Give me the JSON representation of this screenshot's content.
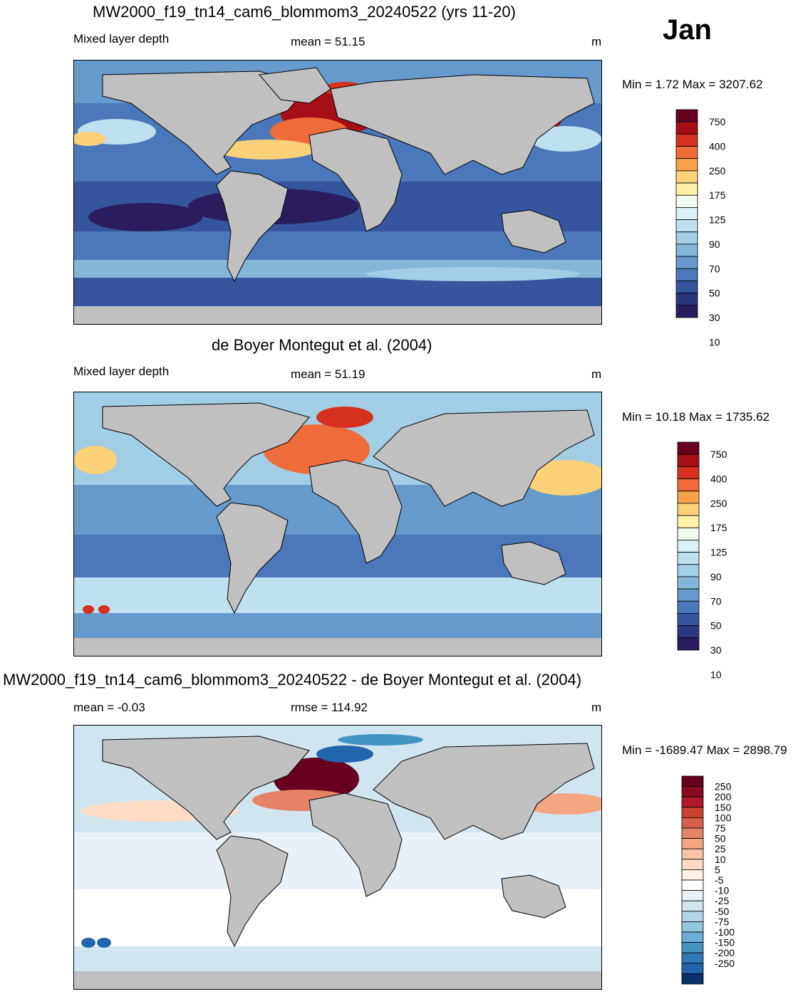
{
  "month": "Jan",
  "panels": [
    {
      "id": "model",
      "title": "MW2000_f19_tn14_cam6_blommom3_20240522 (yrs 11-20)",
      "left_label": "Mixed layer depth",
      "center_label": "mean =  51.15",
      "units": "m",
      "minmax": "Min =   1.72 Max = 3207.62"
    },
    {
      "id": "obs",
      "title": "de Boyer Montegut et al. (2004)",
      "left_label": "Mixed layer depth",
      "center_label": "mean =  51.19",
      "units": "m",
      "minmax": "Min =  10.18 Max = 1735.62"
    },
    {
      "id": "diff",
      "title": "MW2000_f19_tn14_cam6_blommom3_20240522 - de Boyer Montegut et al. (2004)",
      "left_label": "mean =  -0.03",
      "center_label": "rmse = 114.92",
      "units": "m",
      "minmax": "Min = -1689.47 Max = 2898.79"
    }
  ],
  "colorbars": {
    "mld": {
      "labels": [
        "750",
        "400",
        "250",
        "175",
        "125",
        "90",
        "70",
        "50",
        "30",
        "10"
      ],
      "colors": [
        "#67001f",
        "#a50f15",
        "#d6301f",
        "#ef6b3a",
        "#f7a24b",
        "#fcd17a",
        "#fff1a8",
        "#f2fbf0",
        "#dbeff6",
        "#bfe0ee",
        "#a1cde5",
        "#82b7da",
        "#6699cc",
        "#4a78ba",
        "#35559e",
        "#2b357d",
        "#2a1c5e"
      ]
    },
    "diff": {
      "labels": [
        "250",
        "200",
        "150",
        "100",
        "75",
        "50",
        "25",
        "10",
        "5",
        "-5",
        "-10",
        "-25",
        "-50",
        "-75",
        "-100",
        "-150",
        "-200",
        "-250"
      ],
      "colors": [
        "#67001f",
        "#8b0a22",
        "#b2182b",
        "#c8412f",
        "#d6604d",
        "#e58367",
        "#f4a582",
        "#f8c3a7",
        "#fddbc7",
        "#fff0e6",
        "#ffffff",
        "#e8f1f8",
        "#d1e5f0",
        "#b4d5e8",
        "#92c5de",
        "#6aaed6",
        "#4393c3",
        "#2d78b5",
        "#2166ac",
        "#08306b"
      ]
    }
  },
  "map_colors": {
    "land": "#c0c0c0",
    "coast": "#000000"
  }
}
